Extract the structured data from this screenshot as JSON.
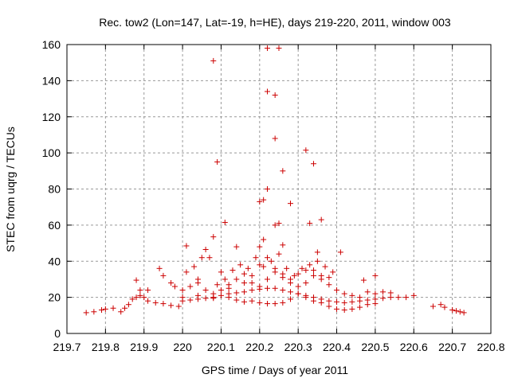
{
  "chart_data": {
    "type": "scatter",
    "title": "Rec. tow2 (Lon=147, Lat=-19, h=HE), days 219-220, 2011, window 003",
    "xlabel": "GPS time / Days of year 2011",
    "ylabel": "STEC from uqrg / TECUs",
    "xlim": [
      219.7,
      220.8
    ],
    "ylim": [
      0,
      160
    ],
    "xticks": [
      "219.7",
      "219.8",
      "219.9",
      "220",
      "220.1",
      "220.2",
      "220.3",
      "220.4",
      "220.5",
      "220.6",
      "220.7",
      "220.8"
    ],
    "xtick_values": [
      219.7,
      219.8,
      219.9,
      220.0,
      220.1,
      220.2,
      220.3,
      220.4,
      220.5,
      220.6,
      220.7,
      220.8
    ],
    "yticks": [
      "0",
      "20",
      "40",
      "60",
      "80",
      "100",
      "120",
      "140",
      "160"
    ],
    "ytick_values": [
      0,
      20,
      40,
      60,
      80,
      100,
      120,
      140,
      160
    ],
    "grid": true,
    "marker": "+",
    "color": "#cc0000",
    "series": [
      {
        "name": "STEC",
        "points": [
          [
            219.75,
            11.5
          ],
          [
            219.77,
            12
          ],
          [
            219.79,
            13
          ],
          [
            219.8,
            13.5
          ],
          [
            219.82,
            14
          ],
          [
            219.84,
            12
          ],
          [
            219.85,
            14
          ],
          [
            219.86,
            16
          ],
          [
            219.87,
            19
          ],
          [
            219.88,
            20
          ],
          [
            219.89,
            21
          ],
          [
            219.9,
            20
          ],
          [
            219.91,
            18
          ],
          [
            219.93,
            17
          ],
          [
            219.95,
            16.5
          ],
          [
            219.97,
            15.5
          ],
          [
            219.99,
            15
          ],
          [
            219.88,
            29.5
          ],
          [
            219.89,
            24
          ],
          [
            219.91,
            24
          ],
          [
            219.94,
            36
          ],
          [
            219.95,
            32
          ],
          [
            219.97,
            28
          ],
          [
            219.98,
            26
          ],
          [
            220.0,
            18
          ],
          [
            220.02,
            18.5
          ],
          [
            220.04,
            19
          ],
          [
            220.06,
            19.5
          ],
          [
            220.08,
            20
          ],
          [
            220.1,
            21
          ],
          [
            220.12,
            22
          ],
          [
            220.14,
            22.5
          ],
          [
            220.16,
            23
          ],
          [
            220.18,
            24
          ],
          [
            220.2,
            24.5
          ],
          [
            220.22,
            25
          ],
          [
            220.24,
            25
          ],
          [
            220.26,
            24
          ],
          [
            220.28,
            23
          ],
          [
            220.3,
            22
          ],
          [
            220.32,
            21
          ],
          [
            220.34,
            20
          ],
          [
            220.36,
            19
          ],
          [
            220.38,
            18
          ],
          [
            220.4,
            17.5
          ],
          [
            220.42,
            17
          ],
          [
            220.44,
            17.5
          ],
          [
            220.46,
            18
          ],
          [
            220.48,
            18.5
          ],
          [
            220.5,
            19
          ],
          [
            220.52,
            19.5
          ],
          [
            220.54,
            20
          ],
          [
            220.56,
            20
          ],
          [
            220.58,
            20
          ],
          [
            220.6,
            21
          ],
          [
            220.0,
            24
          ],
          [
            220.02,
            26
          ],
          [
            220.04,
            28
          ],
          [
            220.06,
            24
          ],
          [
            220.08,
            22
          ],
          [
            220.1,
            24
          ],
          [
            220.12,
            27
          ],
          [
            220.14,
            30
          ],
          [
            220.16,
            33
          ],
          [
            220.18,
            28
          ],
          [
            220.2,
            26
          ],
          [
            220.22,
            30
          ],
          [
            220.24,
            34
          ],
          [
            220.26,
            31
          ],
          [
            220.28,
            28
          ],
          [
            220.3,
            26
          ],
          [
            220.32,
            28
          ],
          [
            220.34,
            32
          ],
          [
            220.36,
            30
          ],
          [
            220.38,
            27
          ],
          [
            220.4,
            24
          ],
          [
            220.42,
            22
          ],
          [
            220.44,
            21
          ],
          [
            220.46,
            20
          ],
          [
            220.48,
            23
          ],
          [
            220.5,
            22
          ],
          [
            220.01,
            34
          ],
          [
            220.03,
            37
          ],
          [
            220.05,
            42
          ],
          [
            220.07,
            42
          ],
          [
            220.09,
            27
          ],
          [
            220.11,
            30
          ],
          [
            220.13,
            35
          ],
          [
            220.15,
            38
          ],
          [
            220.17,
            36
          ],
          [
            220.19,
            42
          ],
          [
            220.21,
            37
          ],
          [
            220.23,
            40
          ],
          [
            220.25,
            44
          ],
          [
            220.27,
            36
          ],
          [
            220.29,
            32
          ],
          [
            220.31,
            36
          ],
          [
            220.33,
            38
          ],
          [
            220.35,
            40
          ],
          [
            220.37,
            37
          ],
          [
            220.39,
            34
          ],
          [
            220.41,
            45
          ],
          [
            220.01,
            48.5
          ],
          [
            220.06,
            46.5
          ],
          [
            220.08,
            53.5
          ],
          [
            220.14,
            48
          ],
          [
            220.2,
            48
          ],
          [
            220.21,
            52
          ],
          [
            220.24,
            60
          ],
          [
            220.25,
            61
          ],
          [
            220.26,
            49
          ],
          [
            220.33,
            61
          ],
          [
            220.35,
            45
          ],
          [
            220.36,
            63
          ],
          [
            220.04,
            30
          ],
          [
            220.1,
            34
          ],
          [
            220.12,
            25
          ],
          [
            220.16,
            28
          ],
          [
            220.18,
            32
          ],
          [
            220.2,
            38
          ],
          [
            220.22,
            42
          ],
          [
            220.24,
            36
          ],
          [
            220.26,
            33
          ],
          [
            220.28,
            30
          ],
          [
            220.3,
            33
          ],
          [
            220.32,
            35
          ],
          [
            220.34,
            35
          ],
          [
            220.36,
            32
          ],
          [
            220.38,
            31
          ],
          [
            220.0,
            20
          ],
          [
            220.04,
            21
          ],
          [
            220.08,
            19.5
          ],
          [
            220.12,
            20
          ],
          [
            220.14,
            18.5
          ],
          [
            220.16,
            17.5
          ],
          [
            220.18,
            18
          ],
          [
            220.2,
            17
          ],
          [
            220.22,
            16.5
          ],
          [
            220.24,
            16.5
          ],
          [
            220.26,
            17
          ],
          [
            220.28,
            19
          ],
          [
            220.3,
            22
          ],
          [
            220.32,
            20
          ],
          [
            220.34,
            18
          ],
          [
            220.36,
            17
          ],
          [
            220.38,
            15
          ],
          [
            220.4,
            13.5
          ],
          [
            220.42,
            13
          ],
          [
            220.44,
            13.5
          ],
          [
            220.46,
            14.5
          ],
          [
            220.48,
            16
          ],
          [
            220.5,
            16.5
          ],
          [
            220.11,
            61.5
          ],
          [
            220.09,
            95
          ],
          [
            220.08,
            151
          ],
          [
            220.2,
            73
          ],
          [
            220.21,
            74
          ],
          [
            220.22,
            80
          ],
          [
            220.22,
            134
          ],
          [
            220.22,
            158
          ],
          [
            220.24,
            132
          ],
          [
            220.24,
            108
          ],
          [
            220.25,
            158
          ],
          [
            220.26,
            90
          ],
          [
            220.28,
            72
          ],
          [
            220.32,
            101.5
          ],
          [
            220.34,
            94
          ],
          [
            220.47,
            29.5
          ],
          [
            220.5,
            32
          ],
          [
            220.52,
            23
          ],
          [
            220.54,
            22.5
          ],
          [
            220.65,
            15
          ],
          [
            220.67,
            16
          ],
          [
            220.68,
            14.5
          ],
          [
            220.7,
            13
          ],
          [
            220.71,
            12.5
          ],
          [
            220.72,
            12
          ],
          [
            220.73,
            11.5
          ]
        ]
      }
    ]
  }
}
